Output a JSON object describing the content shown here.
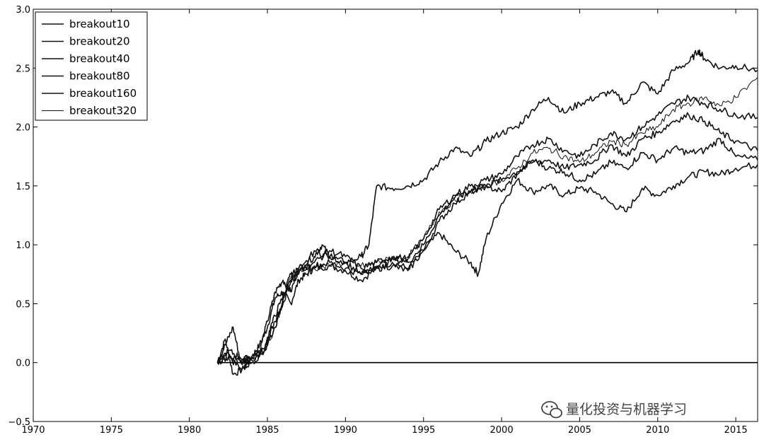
{
  "chart_data": {
    "type": "line",
    "xlim": [
      1970,
      2016.4
    ],
    "ylim": [
      -0.5,
      3.0
    ],
    "xticks": [
      1970,
      1975,
      1980,
      1985,
      1990,
      1995,
      2000,
      2005,
      2010,
      2015
    ],
    "yticks": [
      -0.5,
      0.0,
      0.5,
      1.0,
      1.5,
      2.0,
      2.5,
      3.0
    ],
    "ytick_labels": [
      "−0.5",
      "0.0",
      "0.5",
      "1.0",
      "1.5",
      "2.0",
      "2.5",
      "3.0"
    ],
    "grid": false,
    "legend_position": "top-left",
    "watermark": "量化投资与机器学习",
    "series": [
      {
        "name": "breakout10",
        "points": [
          [
            1981.8,
            0.0
          ],
          [
            1982.3,
            0.2
          ],
          [
            1982.8,
            -0.1
          ],
          [
            1983.5,
            -0.05
          ],
          [
            1984,
            0.05
          ],
          [
            1984.5,
            0.15
          ],
          [
            1985,
            0.3
          ],
          [
            1985.5,
            0.55
          ],
          [
            1986,
            0.6
          ],
          [
            1986.5,
            0.5
          ],
          [
            1987,
            0.7
          ],
          [
            1987.5,
            0.75
          ],
          [
            1988,
            0.8
          ],
          [
            1989,
            0.82
          ],
          [
            1990,
            0.78
          ],
          [
            1991,
            0.7
          ],
          [
            1992,
            0.8
          ],
          [
            1993,
            0.85
          ],
          [
            1994,
            0.8
          ],
          [
            1995,
            0.95
          ],
          [
            1996,
            1.1
          ],
          [
            1997,
            0.95
          ],
          [
            1998,
            0.85
          ],
          [
            1998.5,
            0.75
          ],
          [
            1999,
            1.05
          ],
          [
            2000,
            1.35
          ],
          [
            2001,
            1.55
          ],
          [
            2002,
            1.45
          ],
          [
            2003,
            1.5
          ],
          [
            2004,
            1.42
          ],
          [
            2005,
            1.48
          ],
          [
            2006,
            1.45
          ],
          [
            2007,
            1.35
          ],
          [
            2008,
            1.28
          ],
          [
            2009,
            1.48
          ],
          [
            2010,
            1.42
          ],
          [
            2011,
            1.5
          ],
          [
            2012,
            1.58
          ],
          [
            2013,
            1.62
          ],
          [
            2014,
            1.6
          ],
          [
            2015,
            1.65
          ],
          [
            2016.4,
            1.68
          ]
        ]
      },
      {
        "name": "breakout20",
        "points": [
          [
            1981.8,
            0.0
          ],
          [
            1982.3,
            0.15
          ],
          [
            1982.8,
            0.3
          ],
          [
            1983.3,
            0.0
          ],
          [
            1984,
            0.05
          ],
          [
            1984.5,
            0.1
          ],
          [
            1985,
            0.35
          ],
          [
            1985.5,
            0.6
          ],
          [
            1986,
            0.7
          ],
          [
            1986.5,
            0.6
          ],
          [
            1987,
            0.8
          ],
          [
            1988,
            0.9
          ],
          [
            1988.5,
            1.0
          ],
          [
            1989,
            0.9
          ],
          [
            1990,
            0.85
          ],
          [
            1991,
            0.9
          ],
          [
            1991.5,
            1.0
          ],
          [
            1992,
            1.5
          ],
          [
            1993,
            1.48
          ],
          [
            1994,
            1.5
          ],
          [
            1995,
            1.55
          ],
          [
            1996,
            1.7
          ],
          [
            1997,
            1.82
          ],
          [
            1998,
            1.75
          ],
          [
            1999,
            1.88
          ],
          [
            2000,
            1.95
          ],
          [
            2001,
            2.0
          ],
          [
            2002,
            2.15
          ],
          [
            2003,
            2.25
          ],
          [
            2004,
            2.12
          ],
          [
            2005,
            2.2
          ],
          [
            2006,
            2.25
          ],
          [
            2007,
            2.3
          ],
          [
            2008,
            2.2
          ],
          [
            2009,
            2.38
          ],
          [
            2010,
            2.28
          ],
          [
            2011,
            2.48
          ],
          [
            2012,
            2.55
          ],
          [
            2012.6,
            2.65
          ],
          [
            2013,
            2.58
          ],
          [
            2014,
            2.5
          ],
          [
            2015,
            2.52
          ],
          [
            2016.4,
            2.48
          ]
        ]
      },
      {
        "name": "breakout40",
        "points": [
          [
            1981.8,
            0.0
          ],
          [
            1982.5,
            0.1
          ],
          [
            1983.2,
            0.05
          ],
          [
            1984,
            0.02
          ],
          [
            1984.8,
            0.1
          ],
          [
            1985.2,
            0.3
          ],
          [
            1985.8,
            0.5
          ],
          [
            1986.5,
            0.7
          ],
          [
            1987,
            0.75
          ],
          [
            1988,
            0.95
          ],
          [
            1989,
            0.9
          ],
          [
            1990,
            0.85
          ],
          [
            1991,
            0.75
          ],
          [
            1992,
            0.8
          ],
          [
            1993,
            0.82
          ],
          [
            1994,
            0.78
          ],
          [
            1995,
            0.95
          ],
          [
            1996,
            1.2
          ],
          [
            1997,
            1.35
          ],
          [
            1998,
            1.45
          ],
          [
            1999,
            1.5
          ],
          [
            2000,
            1.45
          ],
          [
            2001,
            1.6
          ],
          [
            2002,
            1.72
          ],
          [
            2003,
            1.65
          ],
          [
            2004,
            1.62
          ],
          [
            2005,
            1.55
          ],
          [
            2006,
            1.6
          ],
          [
            2007,
            1.7
          ],
          [
            2008,
            1.65
          ],
          [
            2009,
            1.78
          ],
          [
            2010,
            1.72
          ],
          [
            2011,
            1.82
          ],
          [
            2012,
            1.78
          ],
          [
            2013,
            1.8
          ],
          [
            2014,
            1.9
          ],
          [
            2015,
            1.75
          ],
          [
            2016.4,
            1.72
          ]
        ]
      },
      {
        "name": "breakout80",
        "points": [
          [
            1981.8,
            0.0
          ],
          [
            1982.5,
            0.05
          ],
          [
            1983.3,
            -0.05
          ],
          [
            1984,
            0.0
          ],
          [
            1984.8,
            0.1
          ],
          [
            1985.5,
            0.3
          ],
          [
            1986,
            0.55
          ],
          [
            1986.5,
            0.75
          ],
          [
            1987,
            0.8
          ],
          [
            1988,
            0.82
          ],
          [
            1989,
            0.85
          ],
          [
            1990,
            0.8
          ],
          [
            1991,
            0.75
          ],
          [
            1992,
            0.82
          ],
          [
            1993,
            0.88
          ],
          [
            1994,
            0.85
          ],
          [
            1995,
            1.0
          ],
          [
            1996,
            1.25
          ],
          [
            1997,
            1.4
          ],
          [
            1998,
            1.45
          ],
          [
            1999,
            1.5
          ],
          [
            2000,
            1.55
          ],
          [
            2001,
            1.62
          ],
          [
            2002,
            1.7
          ],
          [
            2003,
            1.72
          ],
          [
            2004,
            1.65
          ],
          [
            2005,
            1.68
          ],
          [
            2006,
            1.72
          ],
          [
            2007,
            1.85
          ],
          [
            2008,
            1.75
          ],
          [
            2009,
            1.9
          ],
          [
            2010,
            1.95
          ],
          [
            2011,
            2.05
          ],
          [
            2012,
            2.1
          ],
          [
            2013,
            2.05
          ],
          [
            2014,
            1.95
          ],
          [
            2015,
            1.88
          ],
          [
            2016.4,
            1.8
          ]
        ]
      },
      {
        "name": "breakout160",
        "points": [
          [
            1981.8,
            0.0
          ],
          [
            1982.5,
            0.08
          ],
          [
            1983.3,
            0.0
          ],
          [
            1984,
            0.05
          ],
          [
            1984.8,
            0.12
          ],
          [
            1985.5,
            0.35
          ],
          [
            1986,
            0.5
          ],
          [
            1986.5,
            0.7
          ],
          [
            1987,
            0.78
          ],
          [
            1988,
            0.85
          ],
          [
            1989,
            0.95
          ],
          [
            1990,
            0.9
          ],
          [
            1991,
            0.8
          ],
          [
            1992,
            0.85
          ],
          [
            1993,
            0.9
          ],
          [
            1994,
            0.88
          ],
          [
            1995,
            1.05
          ],
          [
            1996,
            1.3
          ],
          [
            1997,
            1.42
          ],
          [
            1998,
            1.5
          ],
          [
            1999,
            1.55
          ],
          [
            2000,
            1.6
          ],
          [
            2001,
            1.75
          ],
          [
            2002,
            1.85
          ],
          [
            2003,
            1.9
          ],
          [
            2004,
            1.8
          ],
          [
            2005,
            1.75
          ],
          [
            2006,
            1.85
          ],
          [
            2007,
            1.95
          ],
          [
            2008,
            1.9
          ],
          [
            2009,
            2.0
          ],
          [
            2010,
            2.1
          ],
          [
            2011,
            2.2
          ],
          [
            2012,
            2.25
          ],
          [
            2013,
            2.2
          ],
          [
            2014,
            2.15
          ],
          [
            2015,
            2.1
          ],
          [
            2016.4,
            2.08
          ]
        ]
      },
      {
        "name": "breakout320",
        "points": [
          [
            1981.8,
            0.0
          ],
          [
            1982.5,
            0.05
          ],
          [
            1983.3,
            0.02
          ],
          [
            1984,
            0.03
          ],
          [
            1984.8,
            0.1
          ],
          [
            1985.5,
            0.3
          ],
          [
            1986,
            0.52
          ],
          [
            1986.5,
            0.72
          ],
          [
            1987,
            0.78
          ],
          [
            1988,
            0.8
          ],
          [
            1989,
            0.82
          ],
          [
            1990,
            0.85
          ],
          [
            1991,
            0.82
          ],
          [
            1992,
            0.85
          ],
          [
            1993,
            0.88
          ],
          [
            1994,
            0.9
          ],
          [
            1995,
            1.05
          ],
          [
            1996,
            1.28
          ],
          [
            1997,
            1.38
          ],
          [
            1998,
            1.45
          ],
          [
            1999,
            1.5
          ],
          [
            2000,
            1.55
          ],
          [
            2001,
            1.65
          ],
          [
            2002,
            1.78
          ],
          [
            2003,
            1.82
          ],
          [
            2004,
            1.75
          ],
          [
            2005,
            1.7
          ],
          [
            2006,
            1.78
          ],
          [
            2007,
            1.88
          ],
          [
            2008,
            1.85
          ],
          [
            2009,
            1.95
          ],
          [
            2010,
            2.0
          ],
          [
            2011,
            2.15
          ],
          [
            2012,
            2.2
          ],
          [
            2013,
            2.25
          ],
          [
            2014,
            2.18
          ],
          [
            2015,
            2.25
          ],
          [
            2016.4,
            2.42
          ]
        ]
      }
    ]
  }
}
